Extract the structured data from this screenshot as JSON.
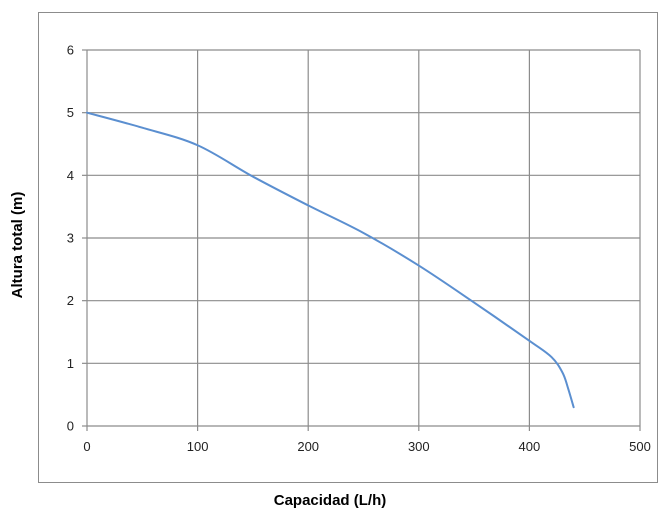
{
  "chart_data": {
    "type": "line",
    "title": "",
    "xlabel": "Capacidad (L/h)",
    "ylabel": "Altura total (m)",
    "xlim": [
      0,
      500
    ],
    "ylim": [
      0,
      6
    ],
    "x_ticks": [
      "0",
      "100",
      "200",
      "300",
      "400",
      "500"
    ],
    "y_ticks": [
      "0",
      "1",
      "2",
      "3",
      "4",
      "5",
      "6"
    ],
    "grid": true,
    "legend": "none",
    "colors": {
      "line": "#5b8fd0",
      "grid": "#8c8c8c",
      "frame": "#8c8c8c"
    },
    "series": [
      {
        "x": [
          0,
          50,
          100,
          150,
          200,
          250,
          300,
          350,
          400,
          420,
          430,
          435,
          440
        ],
        "y": [
          5.0,
          4.76,
          4.48,
          3.98,
          3.52,
          3.08,
          2.56,
          1.97,
          1.36,
          1.1,
          0.85,
          0.6,
          0.3
        ]
      }
    ]
  }
}
